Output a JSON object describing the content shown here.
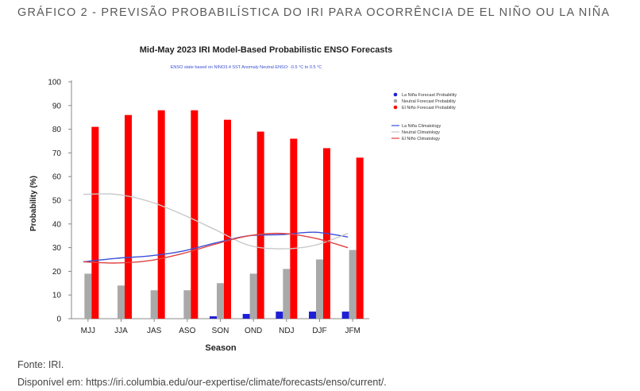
{
  "header": {
    "title": "GRÁFICO 2 - PREVISÃO PROBABILÍSTICA DO IRI PARA OCORRÊNCIA DE EL NIÑO OU LA NIÑA"
  },
  "footer": {
    "source": "Fonte: IRI.",
    "available": "Disponível em: https://iri.columbia.edu/our-expertise/climate/forecasts/enso/current/."
  },
  "chart_data": {
    "type": "bar",
    "title": "Mid-May 2023 IRI Model-Based Probabilistic ENSO Forecasts",
    "subtitle": "ENSO state based on NINO3.4 SST Anomaly Neutral ENSO: -0.5 °C to 0.5 °C",
    "xlabel": "Season",
    "ylabel": "Probability (%)",
    "ylim": [
      0,
      100
    ],
    "yticks": [
      0,
      10,
      20,
      30,
      40,
      50,
      60,
      70,
      80,
      90,
      100
    ],
    "grid": false,
    "legend_position": "right",
    "categories": [
      "MJJ",
      "JJA",
      "JAS",
      "ASO",
      "SON",
      "OND",
      "NDJ",
      "DJF",
      "JFM"
    ],
    "series": [
      {
        "name": "La Niña Forecast Probability",
        "kind": "bar",
        "color": "#1f1fd6",
        "values": [
          0,
          0,
          0,
          0,
          1,
          2,
          3,
          3,
          3
        ]
      },
      {
        "name": "Neutral Forecast Probability",
        "kind": "bar",
        "color": "#a9a9a9",
        "values": [
          19,
          14,
          12,
          12,
          15,
          19,
          21,
          25,
          29
        ]
      },
      {
        "name": "El Niño Forecast Probability",
        "kind": "bar",
        "color": "#ff0000",
        "values": [
          81,
          86,
          88,
          88,
          84,
          79,
          76,
          72,
          68
        ]
      },
      {
        "name": "La Niña Climatology",
        "kind": "line",
        "color": "#3b4fd8",
        "values": [
          24,
          25.5,
          26.5,
          28.5,
          32,
          35,
          35.5,
          36.5,
          34.5
        ]
      },
      {
        "name": "Neutral Climatology",
        "kind": "line",
        "color": "#c8c8c8",
        "values": [
          52.5,
          52.5,
          49.5,
          44,
          37.5,
          31,
          29.5,
          31,
          36
        ]
      },
      {
        "name": "El Niño Climatology",
        "kind": "line",
        "color": "#e04040",
        "values": [
          24,
          23.5,
          24.5,
          27.5,
          31.5,
          35,
          36,
          34,
          30
        ]
      }
    ]
  }
}
